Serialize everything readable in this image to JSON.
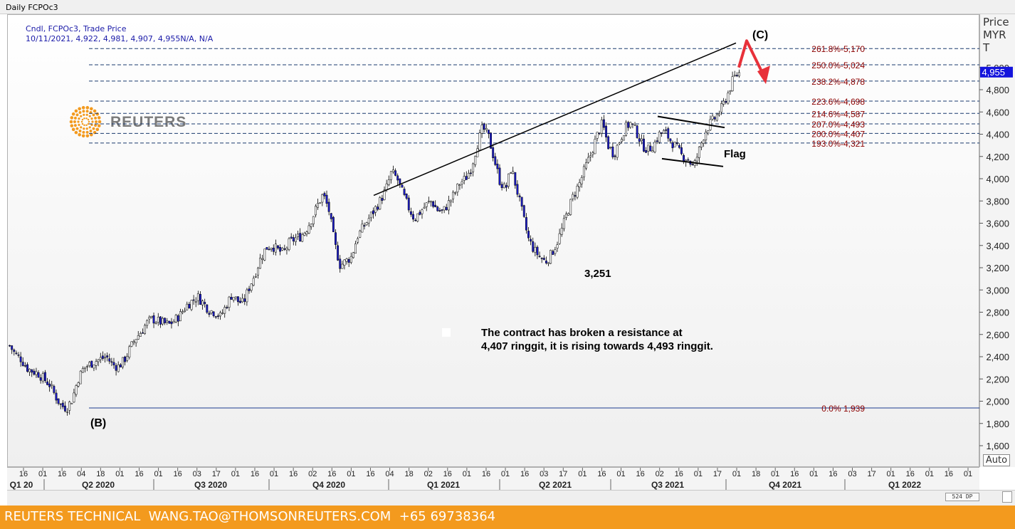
{
  "window": {
    "title": "Daily FCPOc3"
  },
  "legend": {
    "line1": "Cndl, FCPOc3, Trade Price",
    "line2": "10/11/2021, 4,922, 4,981, 4,907, 4,955N/A, N/A"
  },
  "price_axis": {
    "header_lines": [
      "Price",
      "MYR",
      "T"
    ],
    "last_price_label": "4,955",
    "auto_button": "Auto"
  },
  "logo": {
    "text": "REUTERS"
  },
  "scroll": {
    "thumb_label": "524 DP"
  },
  "footer": {
    "text": "REUTERS TECHNICAL  WANG.TAO@THOMSONREUTERS.COM  +65 69738364"
  },
  "colors": {
    "up_candle": "#ffffff",
    "down_candle": "#1a1ac8",
    "fib_line": "#1a3a6e",
    "fib_text": "#8b0000",
    "arrow": "#e8313a",
    "footer": "#f39a1e",
    "last_price_bg": "#1414dc"
  },
  "chart_data": {
    "type": "candlestick",
    "instrument": "FCPOc3",
    "interval": "Daily",
    "ylim": [
      1500,
      5250
    ],
    "y_ticks": [
      1600,
      1800,
      2000,
      2200,
      2400,
      2600,
      2800,
      3000,
      3200,
      3400,
      3600,
      3800,
      4000,
      4200,
      4400,
      4600,
      4800,
      5000
    ],
    "y_tick_labels": [
      "1,600",
      "1,800",
      "2,000",
      "2,200",
      "2,400",
      "2,600",
      "2,800",
      "3,000",
      "3,200",
      "3,400",
      "3,600",
      "3,800",
      "4,000",
      "4,200",
      "4,400",
      "4,600",
      "4,800",
      "5,000"
    ],
    "x_day_labels": [
      "16",
      "01",
      "16",
      "04",
      "18",
      "01",
      "16",
      "01",
      "16",
      "03",
      "17",
      "01",
      "16",
      "01",
      "16",
      "02",
      "16",
      "01",
      "16",
      "04",
      "18",
      "02",
      "16",
      "01",
      "16",
      "01",
      "16",
      "03",
      "17",
      "01",
      "16",
      "01",
      "16",
      "02",
      "16",
      "01",
      "17",
      "01",
      "18",
      "01",
      "16",
      "01",
      "16",
      "03",
      "17",
      "01",
      "16",
      "01",
      "16",
      "01"
    ],
    "x_quarter_labels": [
      "Q1 20",
      "Q2 2020",
      "Q3 2020",
      "Q4 2020",
      "Q1 2021",
      "Q2 2021",
      "Q3 2021",
      "Q4 2021",
      "Q1 2022"
    ],
    "last_bar": {
      "date": "10/11/2021",
      "open": 4922,
      "high": 4981,
      "low": 4907,
      "close": 4955
    },
    "fibonacci_levels": [
      {
        "label": "261.8%-5,170",
        "value": 5170
      },
      {
        "label": "250.0%-5,024",
        "value": 5024
      },
      {
        "label": "238.2%-4,878",
        "value": 4878
      },
      {
        "label": "223.6%-4,698",
        "value": 4698
      },
      {
        "label": "214.6%-4,587",
        "value": 4587
      },
      {
        "label": "207.0%-4,493",
        "value": 4493
      },
      {
        "label": "200.0%-4,407",
        "value": 4407
      },
      {
        "label": "193.0%-4,321",
        "value": 4321
      },
      {
        "label": "0.0%      1,939",
        "value": 1939
      }
    ],
    "annotations": {
      "wave_b": "(B)",
      "wave_c": "(C)",
      "low_label": "3,251",
      "pattern_label": "Flag",
      "comment_line1": "The contract has broken a resistance at",
      "comment_line2": "4,407 ringgit, it is rising towards 4,493 ringgit."
    },
    "price_path": [
      2500,
      2420,
      2380,
      2300,
      2270,
      2250,
      2200,
      2150,
      2050,
      1960,
      1939,
      2020,
      2200,
      2300,
      2330,
      2360,
      2380,
      2400,
      2330,
      2310,
      2360,
      2460,
      2560,
      2620,
      2700,
      2740,
      2720,
      2700,
      2690,
      2730,
      2780,
      2860,
      2900,
      2940,
      2880,
      2820,
      2800,
      2760,
      2860,
      2960,
      2900,
      2880,
      3020,
      3140,
      3280,
      3380,
      3400,
      3360,
      3330,
      3420,
      3460,
      3480,
      3540,
      3640,
      3760,
      3860,
      3720,
      3420,
      3220,
      3260,
      3300,
      3480,
      3560,
      3640,
      3720,
      3800,
      3900,
      4060,
      4000,
      3860,
      3740,
      3640,
      3700,
      3760,
      3800,
      3720,
      3700,
      3780,
      3860,
      3960,
      4000,
      4100,
      4300,
      4460,
      4380,
      4180,
      3980,
      3900,
      4100,
      3900,
      3680,
      3460,
      3360,
      3300,
      3251,
      3320,
      3420,
      3560,
      3720,
      3860,
      3960,
      4100,
      4220,
      4380,
      4500,
      4300,
      4220,
      4340,
      4460,
      4500,
      4420,
      4300,
      4260,
      4300,
      4400,
      4420,
      4340,
      4280,
      4200,
      4180,
      4100,
      4260,
      4420,
      4500,
      4560,
      4640,
      4760,
      4900,
      4955
    ]
  }
}
